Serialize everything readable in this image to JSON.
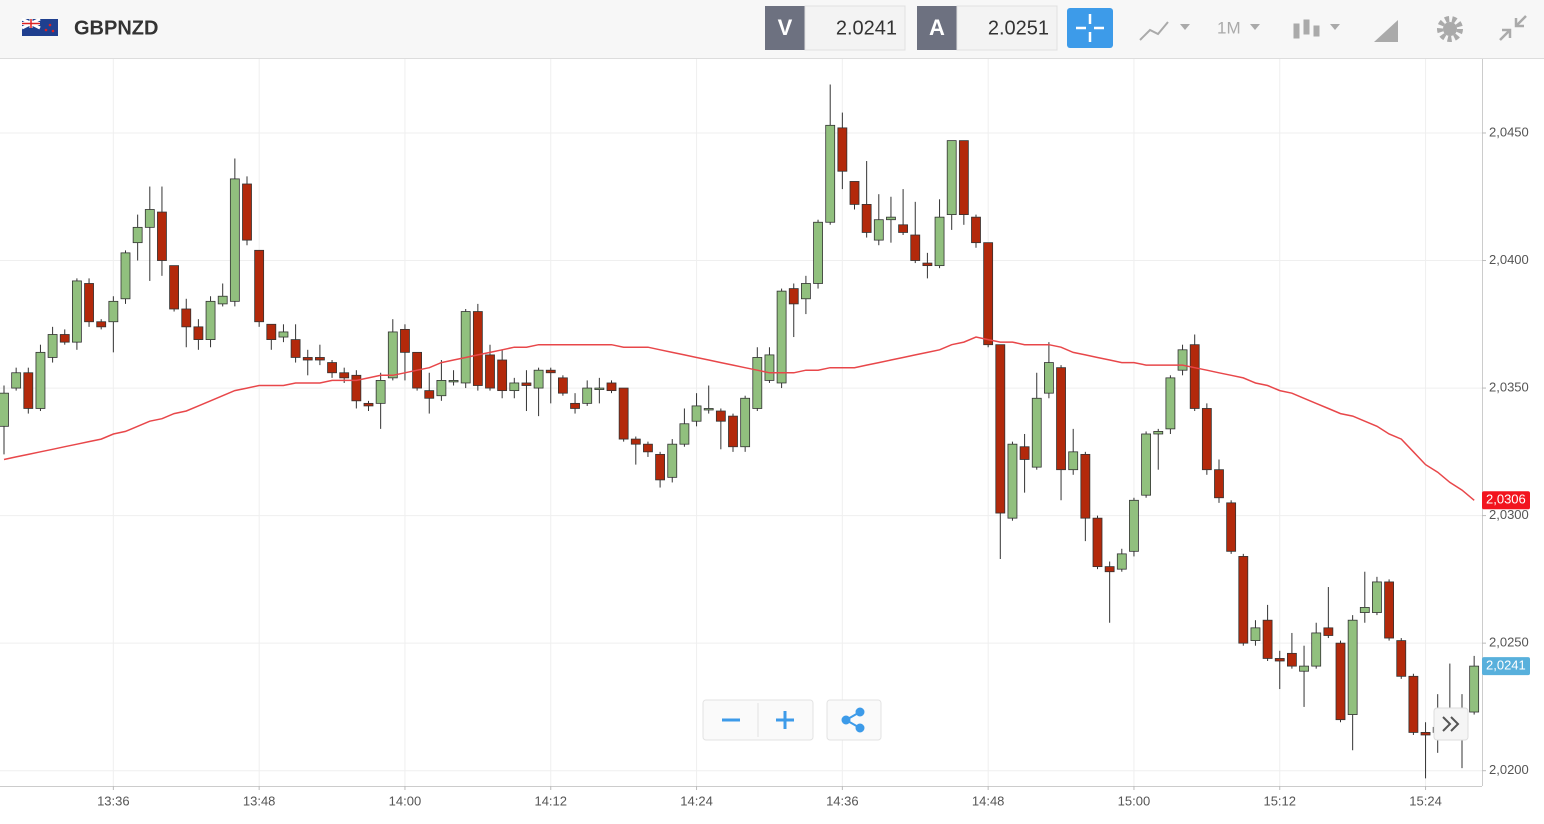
{
  "header": {
    "symbol": "GBPNZD",
    "sell": {
      "label": "V",
      "price": "2.0241"
    },
    "buy": {
      "label": "A",
      "price": "2.0251"
    },
    "timeframe": "1M"
  },
  "chart_data": {
    "type": "candlestick",
    "x": [
      "13:27",
      "13:28",
      "13:29",
      "13:30",
      "13:31",
      "13:32",
      "13:33",
      "13:34",
      "13:35",
      "13:36",
      "13:37",
      "13:38",
      "13:39",
      "13:40",
      "13:41",
      "13:42",
      "13:43",
      "13:44",
      "13:45",
      "13:46",
      "13:47",
      "13:48",
      "13:49",
      "13:50",
      "13:51",
      "13:52",
      "13:53",
      "13:54",
      "13:55",
      "13:56",
      "13:57",
      "13:58",
      "13:59",
      "14:00",
      "14:01",
      "14:02",
      "14:03",
      "14:04",
      "14:05",
      "14:06",
      "14:07",
      "14:08",
      "14:09",
      "14:10",
      "14:11",
      "14:12",
      "14:13",
      "14:14",
      "14:15",
      "14:16",
      "14:17",
      "14:18",
      "14:19",
      "14:20",
      "14:21",
      "14:22",
      "14:23",
      "14:24",
      "14:25",
      "14:26",
      "14:27",
      "14:28",
      "14:29",
      "14:30",
      "14:31",
      "14:32",
      "14:33",
      "14:34",
      "14:35",
      "14:36",
      "14:37",
      "14:38",
      "14:39",
      "14:40",
      "14:41",
      "14:42",
      "14:43",
      "14:44",
      "14:45",
      "14:46",
      "14:47",
      "14:48",
      "14:49",
      "14:50",
      "14:51",
      "14:52",
      "14:53",
      "14:54",
      "14:55",
      "14:56",
      "14:57",
      "14:58",
      "14:59",
      "15:00",
      "15:01",
      "15:02",
      "15:03",
      "15:04",
      "15:05",
      "15:06",
      "15:07",
      "15:08",
      "15:09",
      "15:10",
      "15:11",
      "15:12",
      "15:13",
      "15:14",
      "15:15",
      "15:16",
      "15:17",
      "15:18",
      "15:19",
      "15:20",
      "15:21",
      "15:22",
      "15:23",
      "15:24",
      "15:25",
      "15:26",
      "15:27",
      "15:28"
    ],
    "open": [
      2.0335,
      2.035,
      2.0356,
      2.0342,
      2.0362,
      2.0371,
      2.0368,
      2.0391,
      2.0376,
      2.0376,
      2.0385,
      2.0407,
      2.0413,
      2.0419,
      2.0398,
      2.0381,
      2.0374,
      2.0369,
      2.0383,
      2.0384,
      2.043,
      2.0404,
      2.0375,
      2.037,
      2.0369,
      2.0362,
      2.0362,
      2.036,
      2.0356,
      2.0355,
      2.0344,
      2.0344,
      2.0354,
      2.0373,
      2.0364,
      2.0349,
      2.0347,
      2.0353,
      2.0352,
      2.038,
      2.0363,
      2.0361,
      2.0349,
      2.0352,
      2.035,
      2.0357,
      2.0354,
      2.0344,
      2.0344,
      2.035,
      2.0352,
      2.035,
      2.033,
      2.0328,
      2.0324,
      2.0315,
      2.0328,
      2.0337,
      2.0342,
      2.0341,
      2.0339,
      2.0327,
      2.0342,
      2.0353,
      2.0352,
      2.0389,
      2.0385,
      2.0391,
      2.0415,
      2.0452,
      2.0431,
      2.0422,
      2.0408,
      2.0416,
      2.0414,
      2.041,
      2.0399,
      2.0398,
      2.0418,
      2.0447,
      2.0417,
      2.0407,
      2.0367,
      2.0299,
      2.0327,
      2.0319,
      2.0348,
      2.0358,
      2.0318,
      2.0324,
      2.0299,
      2.028,
      2.0279,
      2.0286,
      2.0308,
      2.0332,
      2.0334,
      2.0357,
      2.0367,
      2.0342,
      2.0318,
      2.0305,
      2.0284,
      2.0251,
      2.0259,
      2.0244,
      2.0246,
      2.0239,
      2.0241,
      2.0256,
      2.025,
      2.0222,
      2.0262,
      2.0262,
      2.0274,
      2.0251,
      2.0237,
      2.0215,
      2.0215,
      2.0219,
      2.0221,
      2.0223
    ],
    "high": [
      2.0351,
      2.0358,
      2.0358,
      2.0367,
      2.0374,
      2.0373,
      2.0393,
      2.0393,
      2.0377,
      2.0386,
      2.0404,
      2.0418,
      2.0429,
      2.0429,
      2.0398,
      2.0385,
      2.0377,
      2.0386,
      2.0391,
      2.044,
      2.0433,
      2.0404,
      2.0375,
      2.0375,
      2.0375,
      2.0365,
      2.0367,
      2.0361,
      2.0358,
      2.0357,
      2.0345,
      2.0356,
      2.0377,
      2.0375,
      2.0364,
      2.0356,
      2.0361,
      2.0357,
      2.0381,
      2.0383,
      2.0367,
      2.0365,
      2.0354,
      2.0357,
      2.0358,
      2.0358,
      2.0355,
      2.0348,
      2.0353,
      2.0354,
      2.0353,
      2.035,
      2.0331,
      2.0329,
      2.0325,
      2.033,
      2.0342,
      2.0348,
      2.0351,
      2.0342,
      2.034,
      2.0347,
      2.0366,
      2.0366,
      2.0389,
      2.0391,
      2.0394,
      2.0416,
      2.0469,
      2.0458,
      2.0431,
      2.0439,
      2.0426,
      2.0425,
      2.0428,
      2.0423,
      2.0403,
      2.0424,
      2.0447,
      2.0447,
      2.0418,
      2.0407,
      2.0367,
      2.0329,
      2.0332,
      2.0356,
      2.0368,
      2.0359,
      2.0334,
      2.0325,
      2.03,
      2.0282,
      2.0287,
      2.0307,
      2.0333,
      2.0334,
      2.0355,
      2.0367,
      2.0371,
      2.0344,
      2.0322,
      2.0306,
      2.0285,
      2.0259,
      2.0265,
      2.0247,
      2.0254,
      2.0249,
      2.0258,
      2.0272,
      2.0251,
      2.0261,
      2.0278,
      2.0276,
      2.0275,
      2.0252,
      2.0238,
      2.0219,
      2.023,
      2.0242,
      2.023,
      2.0245
    ],
    "low": [
      2.0324,
      2.0349,
      2.034,
      2.0341,
      2.036,
      2.0367,
      2.0365,
      2.0374,
      2.0373,
      2.0364,
      2.0383,
      2.04,
      2.0392,
      2.0394,
      2.038,
      2.0366,
      2.0365,
      2.0366,
      2.0382,
      2.0382,
      2.0406,
      2.0374,
      2.0365,
      2.0368,
      2.036,
      2.0355,
      2.0359,
      2.0354,
      2.0352,
      2.0342,
      2.0341,
      2.0334,
      2.0353,
      2.0353,
      2.0349,
      2.034,
      2.0345,
      2.0351,
      2.035,
      2.0349,
      2.0349,
      2.0346,
      2.0346,
      2.0341,
      2.0339,
      2.0344,
      2.0347,
      2.034,
      2.0343,
      2.0344,
      2.0348,
      2.0329,
      2.032,
      2.0323,
      2.0311,
      2.0313,
      2.0327,
      2.0335,
      2.034,
      2.0326,
      2.0325,
      2.0325,
      2.0341,
      2.0352,
      2.035,
      2.037,
      2.0379,
      2.0389,
      2.0414,
      2.0428,
      2.042,
      2.0409,
      2.0406,
      2.0407,
      2.041,
      2.0399,
      2.0393,
      2.0397,
      2.0412,
      2.0414,
      2.0405,
      2.0366,
      2.0283,
      2.0298,
      2.0309,
      2.0318,
      2.0346,
      2.0306,
      2.0316,
      2.029,
      2.0279,
      2.0258,
      2.0278,
      2.0284,
      2.0307,
      2.0318,
      2.0332,
      2.0355,
      2.0341,
      2.0316,
      2.0305,
      2.0285,
      2.0249,
      2.0249,
      2.0243,
      2.0232,
      2.024,
      2.0225,
      2.024,
      2.0252,
      2.0219,
      2.0208,
      2.0258,
      2.0261,
      2.0251,
      2.0236,
      2.0214,
      2.0197,
      2.0207,
      2.0214,
      2.0201,
      2.0222
    ],
    "close": [
      2.0348,
      2.0356,
      2.0342,
      2.0364,
      2.0371,
      2.0368,
      2.0392,
      2.0376,
      2.0374,
      2.0384,
      2.0403,
      2.0413,
      2.042,
      2.04,
      2.0381,
      2.0374,
      2.0369,
      2.0384,
      2.0386,
      2.0432,
      2.0408,
      2.0376,
      2.0369,
      2.0372,
      2.0362,
      2.0361,
      2.0361,
      2.0356,
      2.0354,
      2.0345,
      2.0343,
      2.0353,
      2.0372,
      2.0364,
      2.035,
      2.0346,
      2.0353,
      2.0353,
      2.038,
      2.0351,
      2.035,
      2.0349,
      2.0352,
      2.0351,
      2.0357,
      2.0356,
      2.0348,
      2.0342,
      2.035,
      2.035,
      2.0349,
      2.033,
      2.0328,
      2.0325,
      2.0314,
      2.0328,
      2.0336,
      2.0343,
      2.0342,
      2.0337,
      2.0327,
      2.0346,
      2.0362,
      2.0363,
      2.0388,
      2.0383,
      2.0391,
      2.0415,
      2.0453,
      2.0435,
      2.0422,
      2.0411,
      2.0416,
      2.0417,
      2.0411,
      2.04,
      2.0398,
      2.0417,
      2.0447,
      2.0418,
      2.0407,
      2.0367,
      2.0301,
      2.0328,
      2.0322,
      2.0346,
      2.036,
      2.0318,
      2.0325,
      2.0299,
      2.028,
      2.0278,
      2.0285,
      2.0306,
      2.0332,
      2.0333,
      2.0354,
      2.0365,
      2.0342,
      2.0318,
      2.0307,
      2.0286,
      2.025,
      2.0256,
      2.0244,
      2.0243,
      2.0241,
      2.0241,
      2.0254,
      2.0253,
      2.022,
      2.0259,
      2.0264,
      2.0274,
      2.0252,
      2.0237,
      2.0215,
      2.0214,
      2.0217,
      2.0221,
      2.0223,
      2.0241
    ],
    "up_color": "#91c07e",
    "down_color": "#b3290b",
    "moving_average": {
      "color": "#e8474a",
      "values": [
        2.0322,
        2.0323,
        2.0324,
        2.0325,
        2.0326,
        2.0327,
        2.0328,
        2.0329,
        2.033,
        2.0332,
        2.0333,
        2.0335,
        2.0337,
        2.0338,
        2.034,
        2.0341,
        2.0343,
        2.0345,
        2.0347,
        2.0349,
        2.035,
        2.0351,
        2.0351,
        2.0351,
        2.0352,
        2.0352,
        2.0352,
        2.0353,
        2.0353,
        2.0353,
        2.0354,
        2.0355,
        2.0355,
        2.0356,
        2.0357,
        2.0358,
        2.036,
        2.0361,
        2.0362,
        2.0363,
        2.0364,
        2.0365,
        2.0366,
        2.0366,
        2.0367,
        2.0367,
        2.0367,
        2.0367,
        2.0367,
        2.0367,
        2.0367,
        2.0366,
        2.0366,
        2.0366,
        2.0365,
        2.0364,
        2.0363,
        2.0362,
        2.0361,
        2.036,
        2.0359,
        2.0358,
        2.0357,
        2.0356,
        2.0356,
        2.0356,
        2.0357,
        2.0357,
        2.0358,
        2.0358,
        2.0358,
        2.0359,
        2.036,
        2.0361,
        2.0362,
        2.0363,
        2.0364,
        2.0365,
        2.0367,
        2.0368,
        2.037,
        2.0369,
        2.0368,
        2.0368,
        2.0367,
        2.0367,
        2.0367,
        2.0366,
        2.0364,
        2.0363,
        2.0362,
        2.0361,
        2.036,
        2.036,
        2.0359,
        2.0359,
        2.0359,
        2.0359,
        2.0358,
        2.0357,
        2.0356,
        2.0355,
        2.0354,
        2.0352,
        2.0351,
        2.0349,
        2.0348,
        2.0346,
        2.0344,
        2.0342,
        2.034,
        2.0339,
        2.0337,
        2.0335,
        2.0332,
        2.033,
        2.0325,
        2.032,
        2.0317,
        2.0313,
        2.031,
        2.0306
      ]
    },
    "ma_label": {
      "value": 2.0306,
      "label": "2,0306",
      "color": "#f2141e"
    },
    "price_label": {
      "value": 2.0241,
      "label": "2,0241",
      "color": "#58b0dc"
    },
    "ylim": [
      2.0194,
      2.0479
    ],
    "yticks": [
      {
        "value": 2.02,
        "label": "2,0200"
      },
      {
        "value": 2.025,
        "label": "2,0250"
      },
      {
        "value": 2.03,
        "label": "2,0300"
      },
      {
        "value": 2.035,
        "label": "2,0350"
      },
      {
        "value": 2.04,
        "label": "2,0400"
      },
      {
        "value": 2.045,
        "label": "2,0450"
      }
    ],
    "xticks": [
      "13:36",
      "13:48",
      "14:00",
      "14:12",
      "14:24",
      "14:36",
      "14:48",
      "15:00",
      "15:12",
      "15:24"
    ],
    "grid": true
  }
}
